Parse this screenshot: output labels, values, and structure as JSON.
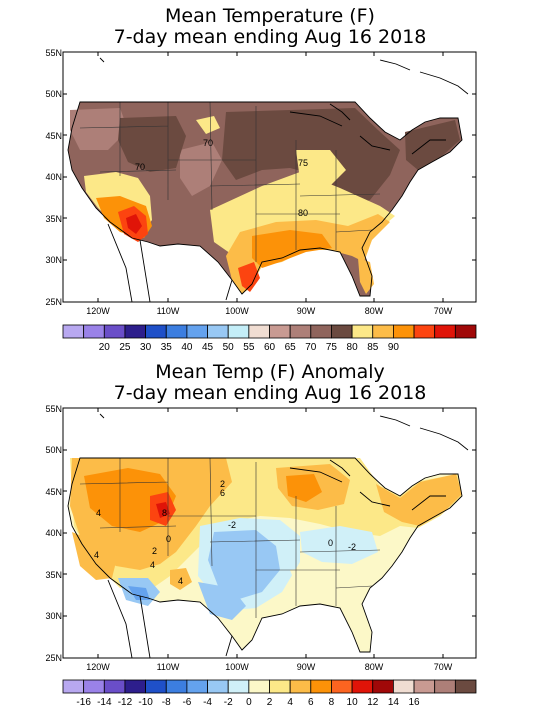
{
  "top_panel": {
    "title_line1": "Mean Temperature (F)",
    "title_line2": "7-day mean ending Aug 16 2018",
    "lat_labels": [
      "55N",
      "50N",
      "45N",
      "40N",
      "35N",
      "30N",
      "25N"
    ],
    "lon_labels": [
      "120W",
      "110W",
      "100W",
      "90W",
      "80W",
      "70W"
    ],
    "contour_labels": [
      "70",
      "70",
      "75",
      "80"
    ],
    "colorbar": {
      "colors": [
        "#b8a8f0",
        "#9a82e8",
        "#6a4ec8",
        "#2d1e8c",
        "#1f50c8",
        "#3c7ee0",
        "#64a2ee",
        "#98c8f4",
        "#c4eef8",
        "#f0ddd2",
        "#c89a92",
        "#ad7f78",
        "#8f645c",
        "#6b4a40",
        "#fce888",
        "#fcbc48",
        "#fc9208",
        "#fc4410",
        "#e01408",
        "#a00808"
      ],
      "labels": [
        "20",
        "25",
        "30",
        "35",
        "40",
        "45",
        "50",
        "55",
        "60",
        "65",
        "70",
        "75",
        "80",
        "85",
        "90"
      ]
    }
  },
  "bottom_panel": {
    "title_line1": "Mean Temp (F) Anomaly",
    "title_line2": "7-day mean ending Aug 16 2018",
    "lat_labels": [
      "55N",
      "50N",
      "45N",
      "40N",
      "35N",
      "30N",
      "25N"
    ],
    "lon_labels": [
      "120W",
      "110W",
      "100W",
      "90W",
      "80W",
      "70W"
    ],
    "contour_labels": [
      "2",
      "6",
      "4",
      "4",
      "4",
      "8",
      "-2",
      "0",
      "-2",
      "0",
      "4",
      "2"
    ],
    "colorbar": {
      "colors": [
        "#b8a8f0",
        "#9a82e8",
        "#6a4ec8",
        "#2d1e8c",
        "#1f50c8",
        "#3c7ee0",
        "#64a2ee",
        "#98c8f4",
        "#d0f0f8",
        "#fcf8c8",
        "#fce888",
        "#fcbc48",
        "#fc9208",
        "#fc6420",
        "#e01408",
        "#a00808",
        "#f0ddd2",
        "#c89a92",
        "#ad7f78",
        "#6b4a40"
      ],
      "labels": [
        "-16",
        "-14",
        "-12",
        "-10",
        "-8",
        "-6",
        "-4",
        "-2",
        "0",
        "2",
        "4",
        "6",
        "8",
        "10",
        "12",
        "14",
        "16"
      ]
    }
  }
}
